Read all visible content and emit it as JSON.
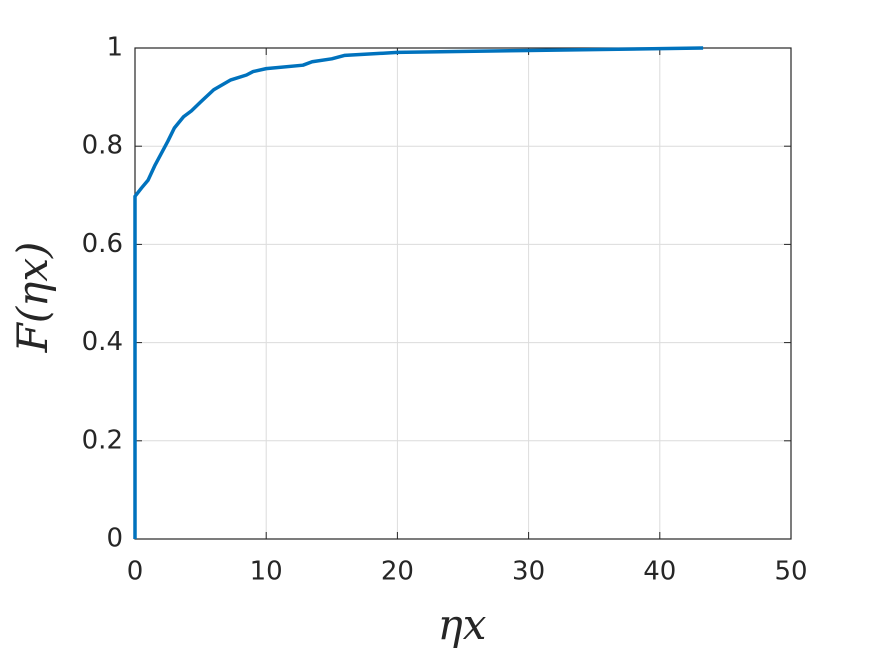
{
  "chart_data": {
    "type": "line",
    "xlabel": "ηx",
    "ylabel": "F(ηx)",
    "x": [
      0,
      0,
      0.5,
      1,
      1.5,
      2,
      2.5,
      3,
      3.7,
      4.3,
      5,
      6,
      7.3,
      8.5,
      9,
      10,
      12.8,
      13.5,
      15,
      16,
      20,
      30,
      43.3
    ],
    "series": [
      {
        "name": "F",
        "color": "#0072bd",
        "values": [
          0,
          0.698,
          0.715,
          0.731,
          0.76,
          0.785,
          0.81,
          0.837,
          0.86,
          0.872,
          0.89,
          0.915,
          0.935,
          0.945,
          0.952,
          0.958,
          0.965,
          0.972,
          0.978,
          0.985,
          0.991,
          0.995,
          1.0
        ]
      }
    ],
    "xlim": [
      0,
      50
    ],
    "xticks": [
      0,
      10,
      20,
      30,
      40,
      50
    ],
    "ylim": [
      0,
      1
    ],
    "yticks": [
      0,
      0.2,
      0.4,
      0.6,
      0.8,
      1
    ],
    "grid": true
  }
}
